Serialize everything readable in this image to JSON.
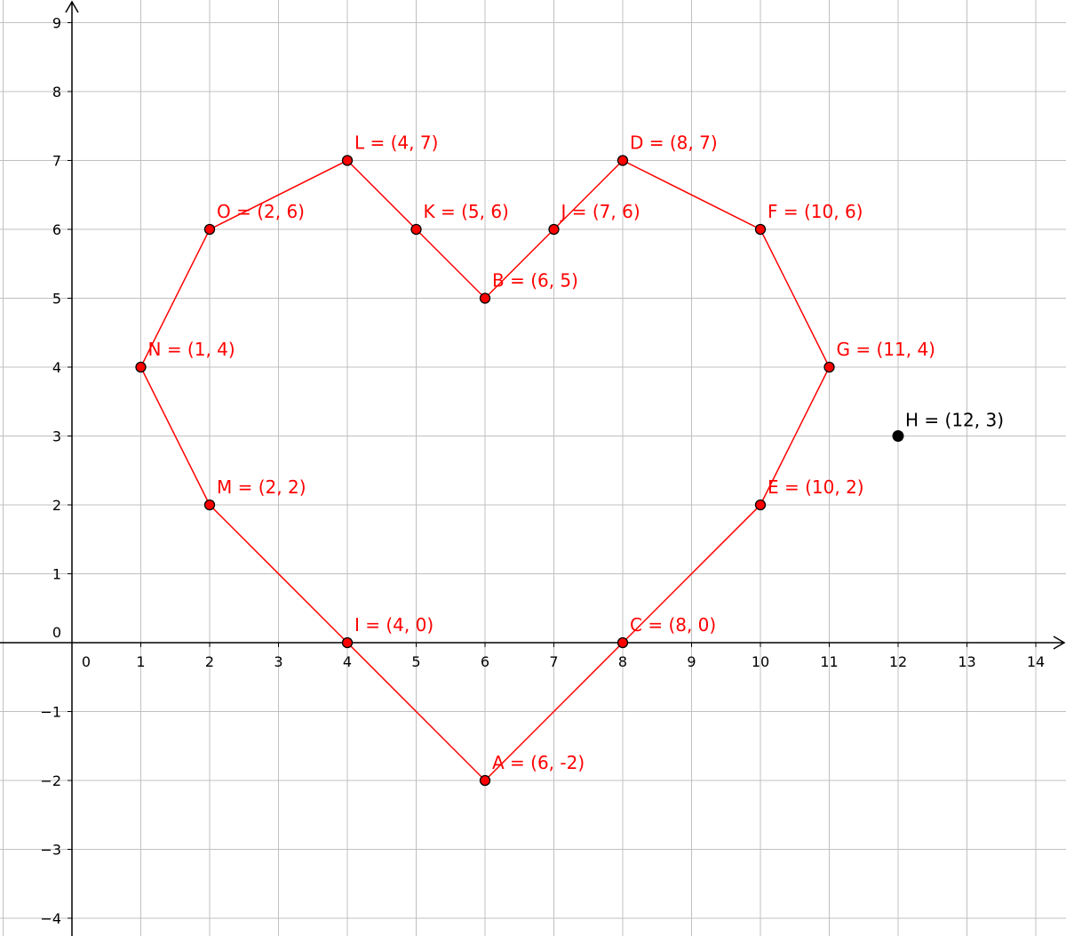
{
  "chart_data": {
    "type": "scatter",
    "title": "",
    "xlabel": "",
    "ylabel": "",
    "xlim": [
      -1,
      14.5
    ],
    "ylim": [
      -4.3,
      9.3
    ],
    "grid": true,
    "x_ticks": [
      0,
      1,
      2,
      3,
      4,
      5,
      6,
      7,
      8,
      9,
      10,
      11,
      12,
      13,
      14
    ],
    "y_ticks": [
      -4,
      -3,
      -2,
      -1,
      0,
      1,
      2,
      3,
      4,
      5,
      6,
      7,
      8,
      9
    ],
    "x_tick_labels": [
      "0",
      "1",
      "2",
      "3",
      "4",
      "5",
      "6",
      "7",
      "8",
      "9",
      "10",
      "11",
      "12",
      "13",
      "14"
    ],
    "y_tick_labels": [
      "−4",
      "−3",
      "−2",
      "−1",
      "0",
      "1",
      "2",
      "3",
      "4",
      "5",
      "6",
      "7",
      "8",
      "9"
    ],
    "colors": {
      "polygon": "#ff0000",
      "isolated": "#000000",
      "grid": "#c0c0c0",
      "axis": "#000000"
    },
    "polygon": {
      "color": "#ff0000",
      "points": [
        {
          "name": "A",
          "x": 6,
          "y": -2,
          "label": "A = (6, -2)"
        },
        {
          "name": "C",
          "x": 8,
          "y": 0,
          "label": "C = (8, 0)"
        },
        {
          "name": "E",
          "x": 10,
          "y": 2,
          "label": "E = (10, 2)"
        },
        {
          "name": "G",
          "x": 11,
          "y": 4,
          "label": "G = (11, 4)"
        },
        {
          "name": "F",
          "x": 10,
          "y": 6,
          "label": "F = (10, 6)"
        },
        {
          "name": "D",
          "x": 8,
          "y": 7,
          "label": "D = (8, 7)"
        },
        {
          "name": "J",
          "x": 7,
          "y": 6,
          "label": "J = (7, 6)"
        },
        {
          "name": "B",
          "x": 6,
          "y": 5,
          "label": "B = (6, 5)"
        },
        {
          "name": "K",
          "x": 5,
          "y": 6,
          "label": "K = (5, 6)"
        },
        {
          "name": "L",
          "x": 4,
          "y": 7,
          "label": "L = (4, 7)"
        },
        {
          "name": "O",
          "x": 2,
          "y": 6,
          "label": "O = (2, 6)"
        },
        {
          "name": "N",
          "x": 1,
          "y": 4,
          "label": "N = (1, 4)"
        },
        {
          "name": "M",
          "x": 2,
          "y": 2,
          "label": "M = (2, 2)"
        },
        {
          "name": "I",
          "x": 4,
          "y": 0,
          "label": "I = (4, 0)"
        }
      ]
    },
    "isolated_points": [
      {
        "name": "H",
        "x": 12,
        "y": 3,
        "label": "H = (12, 3)",
        "color": "#000000"
      }
    ]
  }
}
